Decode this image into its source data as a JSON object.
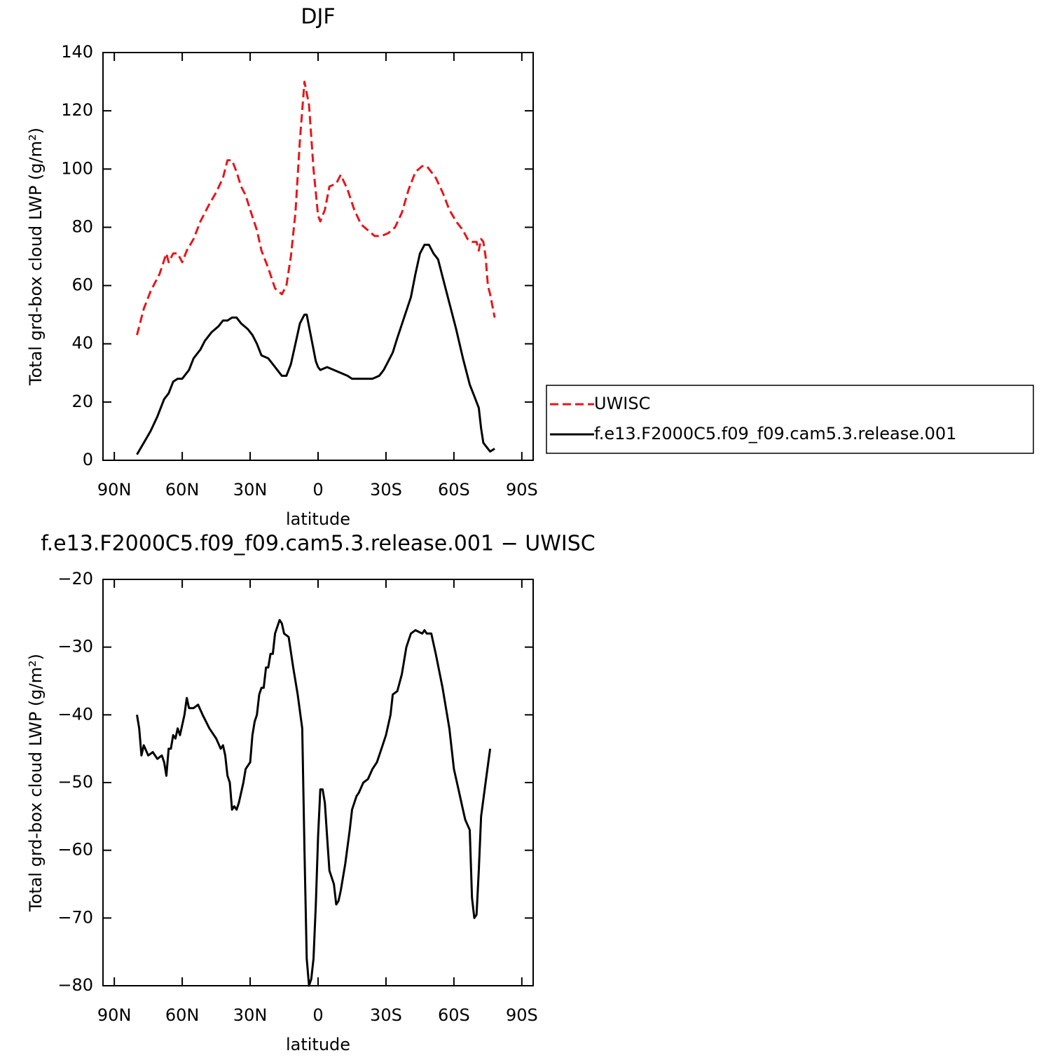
{
  "chart_data": [
    {
      "type": "line",
      "title": "DJF",
      "xlabel": "latitude",
      "ylabel": "Total grd-box cloud LWP (g/m²)",
      "xlim": [
        95,
        -95
      ],
      "ylim": [
        0,
        140
      ],
      "xticks": [
        {
          "value": 90,
          "label": "90N"
        },
        {
          "value": 60,
          "label": "60N"
        },
        {
          "value": 30,
          "label": "30N"
        },
        0,
        {
          "value": -30,
          "label": "30S"
        },
        {
          "value": -60,
          "label": "60S"
        },
        {
          "value": -90,
          "label": "90S"
        }
      ],
      "yticks": [
        0,
        20,
        40,
        60,
        80,
        100,
        120,
        140
      ],
      "legend_position": "right",
      "series": [
        {
          "name": "UWISC",
          "color": "#e8151b",
          "line_style": "dashed",
          "x": [
            80,
            77,
            74,
            70,
            67,
            66,
            64,
            62,
            60,
            58,
            55,
            52,
            48,
            45,
            42,
            40,
            38,
            36,
            34,
            32,
            30,
            27,
            25,
            22,
            19,
            16,
            14,
            12,
            10,
            8,
            6,
            4,
            2,
            0,
            -1,
            -3,
            -5,
            -8,
            -10,
            -13,
            -16,
            -19,
            -22,
            -25,
            -28,
            -31,
            -34,
            -37,
            -40,
            -43,
            -46,
            -48,
            -50,
            -52,
            -55,
            -58,
            -61,
            -64,
            -66,
            -68,
            -70,
            -71,
            -72,
            -73,
            -74,
            -75,
            -76,
            -78
          ],
          "values": [
            43,
            52,
            58,
            64,
            71,
            68,
            71,
            71,
            68,
            72,
            76,
            82,
            88,
            92,
            97,
            103,
            103,
            99,
            94,
            91,
            86,
            79,
            72,
            66,
            59,
            57,
            60,
            70,
            85,
            110,
            130,
            122,
            100,
            84,
            82,
            86,
            94,
            95,
            98,
            93,
            86,
            81,
            79,
            77,
            77,
            78,
            80,
            85,
            93,
            99,
            101,
            101,
            99,
            97,
            92,
            86,
            82,
            79,
            76,
            75,
            75,
            72,
            76,
            75,
            70,
            60,
            57,
            49
          ]
        },
        {
          "name": "f.e13.F2000C5.f09_f09.cam5.3.release.001",
          "color": "#000000",
          "line_style": "solid",
          "x": [
            80,
            77,
            74,
            71,
            68,
            66,
            64,
            62,
            60,
            57,
            55,
            52,
            50,
            47,
            44,
            42,
            40,
            38,
            36,
            34,
            31,
            29,
            27,
            25,
            22,
            20,
            18,
            16,
            14,
            12,
            10,
            8,
            6,
            5,
            3,
            1,
            0,
            -1,
            -4,
            -7,
            -10,
            -13,
            -15,
            -18,
            -21,
            -24,
            -27,
            -29,
            -31,
            -33,
            -35,
            -38,
            -41,
            -43,
            -45,
            -47,
            -49,
            -51,
            -53,
            -55,
            -58,
            -61,
            -64,
            -67,
            -69,
            -71,
            -72,
            -73,
            -75,
            -76,
            -78
          ],
          "values": [
            2,
            6,
            10,
            15,
            21,
            23,
            27,
            28,
            28,
            31,
            35,
            38,
            41,
            44,
            46,
            48,
            48,
            49,
            49,
            47,
            45,
            43,
            40,
            36,
            35,
            33,
            31,
            29,
            29,
            33,
            40,
            47,
            50,
            50,
            42,
            34,
            32,
            31,
            32,
            31,
            30,
            29,
            28,
            28,
            28,
            28,
            29,
            31,
            34,
            37,
            42,
            49,
            56,
            64,
            71,
            74,
            74,
            71,
            69,
            63,
            54,
            45,
            35,
            26,
            22,
            18,
            11,
            6,
            4,
            3,
            4
          ]
        }
      ]
    },
    {
      "type": "line",
      "title": "f.e13.F2000C5.f09_f09.cam5.3.release.001  −  UWISC",
      "xlabel": "latitude",
      "ylabel": "Total grd-box cloud LWP (g/m²)",
      "xlim": [
        95,
        -95
      ],
      "ylim": [
        -80,
        -20
      ],
      "color": "#000000",
      "xticks": [
        {
          "value": 90,
          "label": "90N"
        },
        {
          "value": 60,
          "label": "60N"
        },
        {
          "value": 30,
          "label": "30N"
        },
        0,
        {
          "value": -30,
          "label": "30S"
        },
        {
          "value": -60,
          "label": "60S"
        },
        {
          "value": -90,
          "label": "90S"
        }
      ],
      "yticks": [
        {
          "value": -80,
          "label": "−80"
        },
        {
          "value": -70,
          "label": "−70"
        },
        {
          "value": -60,
          "label": "−60"
        },
        {
          "value": -50,
          "label": "−50"
        },
        {
          "value": -40,
          "label": "−40"
        },
        {
          "value": -30,
          "label": "−30"
        },
        {
          "value": -20,
          "label": "−20"
        }
      ],
      "x": [
        80,
        79,
        78,
        77,
        75,
        73,
        71,
        69,
        68,
        67,
        66,
        65,
        64,
        63,
        62,
        61,
        59,
        58,
        57,
        55,
        53,
        51,
        48,
        45,
        43,
        42,
        41,
        40,
        39,
        38,
        37,
        36,
        35,
        33,
        32,
        30,
        29,
        28,
        27,
        26,
        25,
        24,
        23,
        22,
        21,
        20,
        19,
        18,
        17,
        16,
        15,
        13,
        11,
        9,
        7,
        6,
        5,
        4,
        3,
        2,
        1,
        0,
        -1,
        -2,
        -3,
        -4,
        -5,
        -6,
        -7,
        -8,
        -9,
        -10,
        -12,
        -14,
        -15,
        -17,
        -18,
        -20,
        -22,
        -24,
        -26,
        -28,
        -30,
        -32,
        -33,
        -35,
        -37,
        -39,
        -41,
        -43,
        -46,
        -47,
        -48,
        -50,
        -52,
        -55,
        -58,
        -60,
        -62,
        -64,
        -65,
        -67,
        -68,
        -69,
        -70,
        -71,
        -72,
        -74,
        -76
      ],
      "values": [
        -40,
        -42,
        -46,
        -44.5,
        -46,
        -45.5,
        -46.5,
        -46,
        -47,
        -49,
        -45,
        -45,
        -43,
        -43.5,
        -42,
        -43,
        -40,
        -37.5,
        -39,
        -39,
        -38.5,
        -40,
        -42,
        -43.5,
        -45,
        -44.5,
        -46,
        -49,
        -50,
        -54,
        -53.5,
        -54,
        -53,
        -50,
        -48,
        -47,
        -43,
        -41,
        -40,
        -37,
        -36,
        -36,
        -33,
        -33,
        -31,
        -31,
        -28,
        -27,
        -26,
        -26.5,
        -28,
        -28.5,
        -33,
        -37,
        -42,
        -60,
        -76,
        -80,
        -79,
        -76,
        -68,
        -58,
        -51,
        -51,
        -53,
        -58,
        -63,
        -64,
        -65,
        -68,
        -67.5,
        -66,
        -62,
        -57,
        -54,
        -52,
        -51.5,
        -50,
        -49.5,
        -48,
        -47,
        -45,
        -43,
        -40,
        -37,
        -36.5,
        -34,
        -30,
        -28,
        -27.5,
        -28,
        -27.5,
        -28,
        -28,
        -31,
        -36,
        -42,
        -48,
        -51,
        -54,
        -55.5,
        -57,
        -67,
        -70,
        -69.5,
        -63,
        -55,
        -50,
        -45
      ]
    }
  ]
}
